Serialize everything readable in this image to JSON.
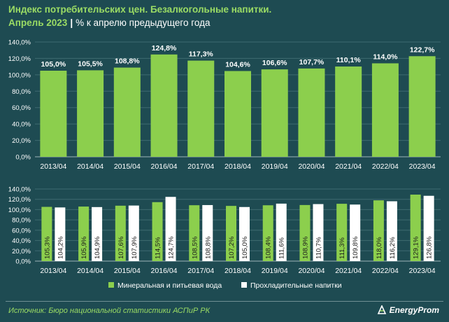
{
  "header": {
    "title_line1": "Индекс потребительских цен. Безалкогольные напитки.",
    "title_period": "Апрель 2023",
    "title_separator": "|",
    "title_unit": "% к апрелю предыдущего года"
  },
  "footer": {
    "source": "Источник: Бюро национальной статистики АСПиР РК",
    "logo_text": "EnergyProm"
  },
  "colors": {
    "background": "#1e4b52",
    "green": "#8ccf4d",
    "white": "#ffffff",
    "title_green": "#9bdc64"
  },
  "chart_data": [
    {
      "type": "bar",
      "categories": [
        "2013/04",
        "2014/04",
        "2015/04",
        "2016/04",
        "2017/04",
        "2018/04",
        "2019/04",
        "2020/04",
        "2021/04",
        "2022/04",
        "2023/04"
      ],
      "values": [
        105.0,
        105.5,
        108.8,
        124.8,
        117.3,
        104.6,
        106.6,
        107.7,
        110.1,
        114.0,
        122.7
      ],
      "value_labels": [
        "105,0%",
        "105,5%",
        "108,8%",
        "124,8%",
        "117,3%",
        "104,6%",
        "106,6%",
        "107,7%",
        "110,1%",
        "114,0%",
        "122,7%"
      ],
      "ylim": [
        0,
        140
      ],
      "yticks": [
        "0,0%",
        "20,0%",
        "40,0%",
        "60,0%",
        "80,0%",
        "100,0%",
        "120,0%",
        "140,0%"
      ],
      "grid": true
    },
    {
      "type": "bar",
      "categories": [
        "2013/04",
        "2014/04",
        "2015/04",
        "2016/04",
        "2017/04",
        "2018/04",
        "2019/04",
        "2020/04",
        "2021/04",
        "2022/04",
        "2023/04"
      ],
      "series": [
        {
          "name": "Минеральная и питьевая вода",
          "values": [
            105.3,
            105.9,
            107.6,
            114.5,
            108.5,
            107.2,
            108.4,
            108.9,
            111.3,
            118.0,
            129.1
          ],
          "value_labels": [
            "105,3%",
            "105,9%",
            "107,6%",
            "114,5%",
            "108,5%",
            "107,2%",
            "108,4%",
            "108,9%",
            "111,3%",
            "118,0%",
            "129,1%"
          ]
        },
        {
          "name": "Прохладительные напитки",
          "values": [
            104.2,
            104.9,
            107.9,
            124.7,
            108.8,
            105.0,
            111.6,
            110.7,
            109.8,
            116.2,
            126.8
          ],
          "value_labels": [
            "104,2%",
            "104,9%",
            "107,9%",
            "124,7%",
            "108,8%",
            "105,0%",
            "111,6%",
            "110,7%",
            "109,8%",
            "116,2%",
            "126,8%"
          ]
        }
      ],
      "ylim": [
        0,
        140
      ],
      "yticks": [
        "0,0%",
        "20,0%",
        "40,0%",
        "60,0%",
        "80,0%",
        "100,0%",
        "120,0%",
        "140,0%"
      ],
      "legend": "bottom",
      "grid": true
    }
  ]
}
